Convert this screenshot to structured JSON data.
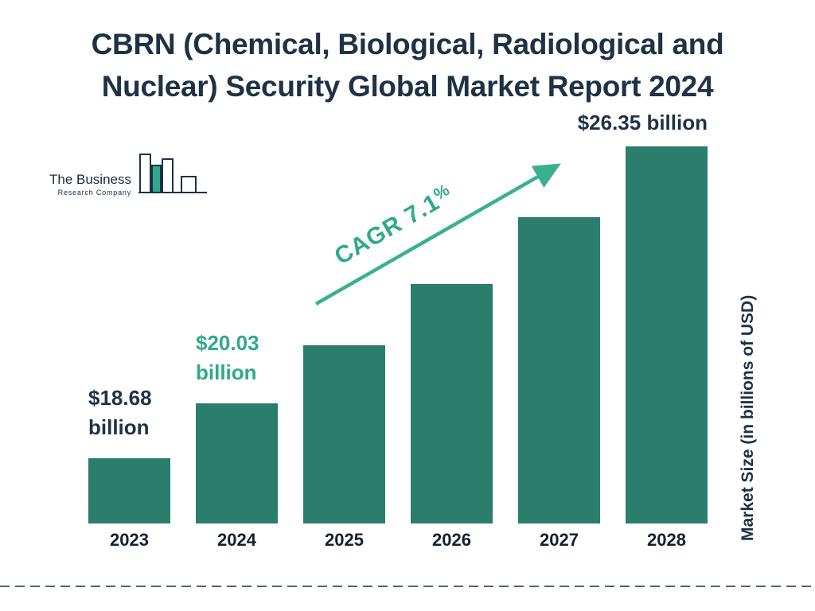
{
  "report": {
    "title": "CBRN (Chemical, Biological, Radiological and Nuclear) Security Global Market Report 2024"
  },
  "logo": {
    "line1": "The Business",
    "line2": "Research Company"
  },
  "cagr": {
    "label": "CAGR",
    "value": "7.1",
    "percent": "%"
  },
  "y_axis_label": "Market Size (in billions of USD)",
  "colors": {
    "bar": "#2B7D6C",
    "dark_text": "#1F3245",
    "accent_green": "#2FA98C"
  },
  "chart_data": {
    "type": "bar",
    "title": "CBRN (Chemical, Biological, Radiological and Nuclear) Security Global Market Report 2024",
    "xlabel": "",
    "ylabel": "Market Size (in billions of USD)",
    "unit": "USD billions",
    "categories": [
      "2023",
      "2024",
      "2025",
      "2026",
      "2027",
      "2028"
    ],
    "values": [
      18.68,
      20.03,
      21.45,
      22.97,
      24.6,
      26.35
    ],
    "labeled_values": {
      "2023": "$18.68 billion",
      "2024": "$20.03 billion",
      "2028": "$26.35 billion"
    },
    "cagr_percent": 7.1,
    "grid": false,
    "legend": "none",
    "annotations": {
      "y2023": {
        "line1": "$18.68",
        "line2": "billion"
      },
      "y2024": {
        "line1": "$20.03",
        "line2": "billion"
      },
      "y2028": {
        "line1": "$26.35 billion"
      }
    }
  }
}
